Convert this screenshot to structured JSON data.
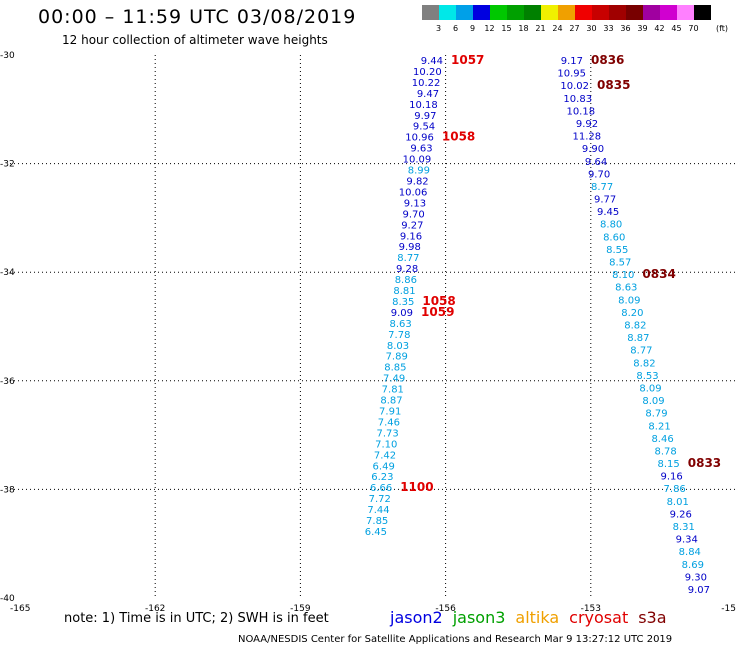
{
  "title": "00:00 – 11:59 UTC 03/08/2019",
  "subtitle": "12 hour collection of altimeter wave heights",
  "legend": {
    "unit": "(ft)",
    "bins": [
      {
        "label": "3",
        "color": "#808080"
      },
      {
        "label": "6",
        "color": "#00e8e8"
      },
      {
        "label": "9",
        "color": "#00a0e8"
      },
      {
        "label": "12",
        "color": "#0000e0"
      },
      {
        "label": "15",
        "color": "#00c800"
      },
      {
        "label": "18",
        "color": "#00a000"
      },
      {
        "label": "21",
        "color": "#008000"
      },
      {
        "label": "24",
        "color": "#f0f000"
      },
      {
        "label": "27",
        "color": "#f0a000"
      },
      {
        "label": "30",
        "color": "#f00000"
      },
      {
        "label": "33",
        "color": "#c80000"
      },
      {
        "label": "36",
        "color": "#a00000"
      },
      {
        "label": "39",
        "color": "#780000"
      },
      {
        "label": "42",
        "color": "#a000a0"
      },
      {
        "label": "45",
        "color": "#d000d0"
      },
      {
        "label": "70",
        "color": "#ff80ff"
      },
      {
        "label": "",
        "color": "#000000"
      }
    ]
  },
  "axes": {
    "lon_min": -165,
    "lon_max": -150,
    "lat_min": -40,
    "lat_max": -30,
    "lon_ticks": [
      "-165",
      "-162",
      "-159",
      "-156",
      "-153",
      "-15"
    ],
    "lat_ticks": [
      "-30",
      "-32",
      "-34",
      "-36",
      "-38",
      "-40"
    ]
  },
  "tracks": [
    {
      "name": "track-west",
      "points": [
        [
          "9.44",
          "d"
        ],
        [
          "10.20",
          "d"
        ],
        [
          "10.22",
          "d"
        ],
        [
          "9.47",
          "d"
        ],
        [
          "10.18",
          "d"
        ],
        [
          "9.97",
          "d"
        ],
        [
          "9.54",
          "d"
        ],
        [
          "10.96",
          "d"
        ],
        [
          "9.63",
          "d"
        ],
        [
          "10.09",
          "d"
        ],
        [
          "8.99",
          "l"
        ],
        [
          "9.82",
          "d"
        ],
        [
          "10.06",
          "d"
        ],
        [
          "9.13",
          "d"
        ],
        [
          "9.70",
          "d"
        ],
        [
          "9.27",
          "d"
        ],
        [
          "9.16",
          "d"
        ],
        [
          "9.98",
          "d"
        ],
        [
          "8.77",
          "l"
        ],
        [
          "9.28",
          "d"
        ],
        [
          "8.86",
          "l"
        ],
        [
          "8.81",
          "l"
        ],
        [
          "8.35",
          "l"
        ],
        [
          "9.09",
          "d"
        ],
        [
          "8.63",
          "l"
        ],
        [
          "7.78",
          "l"
        ],
        [
          "8.03",
          "l"
        ],
        [
          "7.89",
          "l"
        ],
        [
          "8.85",
          "l"
        ],
        [
          "7.49",
          "l"
        ],
        [
          "7.81",
          "l"
        ],
        [
          "8.87",
          "l"
        ],
        [
          "7.91",
          "l"
        ],
        [
          "7.46",
          "l"
        ],
        [
          "7.73",
          "l"
        ],
        [
          "7.10",
          "l"
        ],
        [
          "7.42",
          "l"
        ],
        [
          "6.49",
          "l"
        ],
        [
          "6.23",
          "l"
        ],
        [
          "6.66",
          "l"
        ],
        [
          "7.72",
          "l"
        ],
        [
          "7.44",
          "l"
        ],
        [
          "7.85",
          "l"
        ],
        [
          "6.45",
          "l"
        ]
      ]
    },
    {
      "name": "track-east",
      "points": [
        [
          "9.17",
          "d"
        ],
        [
          "10.95",
          "d"
        ],
        [
          "10.02",
          "d"
        ],
        [
          "10.83",
          "d"
        ],
        [
          "10.18",
          "d"
        ],
        [
          "9.92",
          "d"
        ],
        [
          "11.28",
          "d"
        ],
        [
          "9.90",
          "d"
        ],
        [
          "9.64",
          "d"
        ],
        [
          "9.70",
          "d"
        ],
        [
          "8.77",
          "l"
        ],
        [
          "9.77",
          "d"
        ],
        [
          "9.45",
          "d"
        ],
        [
          "8.80",
          "l"
        ],
        [
          "8.60",
          "l"
        ],
        [
          "8.55",
          "l"
        ],
        [
          "8.57",
          "l"
        ],
        [
          "8.10",
          "l"
        ],
        [
          "8.63",
          "l"
        ],
        [
          "8.09",
          "l"
        ],
        [
          "8.20",
          "l"
        ],
        [
          "8.82",
          "l"
        ],
        [
          "8.87",
          "l"
        ],
        [
          "8.77",
          "l"
        ],
        [
          "8.82",
          "l"
        ],
        [
          "8.53",
          "l"
        ],
        [
          "8.09",
          "l"
        ],
        [
          "8.09",
          "l"
        ],
        [
          "8.79",
          "l"
        ],
        [
          "8.21",
          "l"
        ],
        [
          "8.46",
          "l"
        ],
        [
          "8.78",
          "l"
        ],
        [
          "8.15",
          "l"
        ],
        [
          "9.16",
          "d"
        ],
        [
          "7.86",
          "l"
        ],
        [
          "8.01",
          "l"
        ],
        [
          "9.26",
          "d"
        ],
        [
          "8.31",
          "l"
        ],
        [
          "9.34",
          "d"
        ],
        [
          "8.84",
          "l"
        ],
        [
          "8.69",
          "l"
        ],
        [
          "9.30",
          "d"
        ],
        [
          "9.07",
          "d"
        ]
      ]
    }
  ],
  "time_labels": [
    {
      "text": "1057",
      "color": "#e00000",
      "track": 0,
      "index": 0
    },
    {
      "text": "1058",
      "color": "#e00000",
      "track": 0,
      "index": 7
    },
    {
      "text": "1058",
      "color": "#e00000",
      "track": 0,
      "index": 22
    },
    {
      "text": "1059",
      "color": "#e00000",
      "track": 0,
      "index": 23
    },
    {
      "text": "1100",
      "color": "#e00000",
      "track": 0,
      "index": 39
    },
    {
      "text": "0836",
      "color": "#800000",
      "track": 1,
      "index": 0
    },
    {
      "text": "0835",
      "color": "#800000",
      "track": 1,
      "index": 2
    },
    {
      "text": "0834",
      "color": "#800000",
      "track": 1,
      "index": 17
    },
    {
      "text": "0833",
      "color": "#800000",
      "track": 1,
      "index": 32
    }
  ],
  "value_colors": {
    "d": "#0000c8",
    "l": "#00a0e0"
  },
  "note": "note:  1) Time is in UTC;  2) SWH is in feet",
  "satellites": [
    {
      "name": "jason2",
      "color": "#0000e0"
    },
    {
      "name": "jason3",
      "color": "#00a000"
    },
    {
      "name": "altika",
      "color": "#f0a000"
    },
    {
      "name": "cryosat",
      "color": "#e00000"
    },
    {
      "name": "s3a",
      "color": "#800000"
    }
  ],
  "footer": "NOAA/NESDIS Center for Satellite Applications and Research    Mar  9 13:27:12 UTC 2019"
}
